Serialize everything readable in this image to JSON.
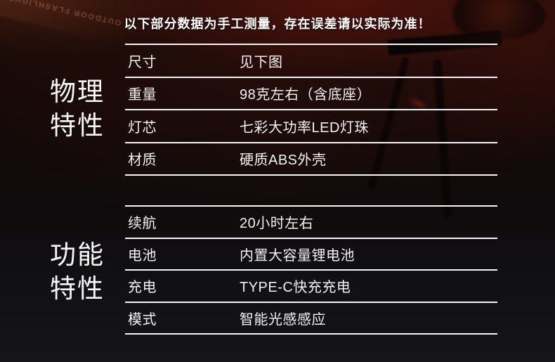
{
  "header": {
    "notice": "以下部分数据为手工测量，存在误差请以实际为准！"
  },
  "background": {
    "package_text": "OUTDOOR FLASHLIGHT"
  },
  "sections": [
    {
      "label": "物理特性",
      "label_line1": "物理",
      "label_line2": "特性",
      "rows": [
        {
          "key": "尺寸",
          "value": "见下图"
        },
        {
          "key": "重量",
          "value": "98克左右（含底座）"
        },
        {
          "key": "灯芯",
          "value": "七彩大功率LED灯珠"
        },
        {
          "key": "材质",
          "value": "硬质ABS外壳"
        }
      ]
    },
    {
      "label": "功能特性",
      "label_line1": "功能",
      "label_line2": "特性",
      "rows": [
        {
          "key": "续航",
          "value": "20小时左右"
        },
        {
          "key": "电池",
          "value": "内置大容量锂电池"
        },
        {
          "key": "充电",
          "value": "TYPE-C快充充电"
        },
        {
          "key": "模式",
          "value": "智能光感感应"
        }
      ]
    }
  ],
  "colors": {
    "text": "#f2f2f2",
    "divider_line": "#f6f6f6",
    "background_red": "#3a120c",
    "background_dark": "#121216"
  }
}
